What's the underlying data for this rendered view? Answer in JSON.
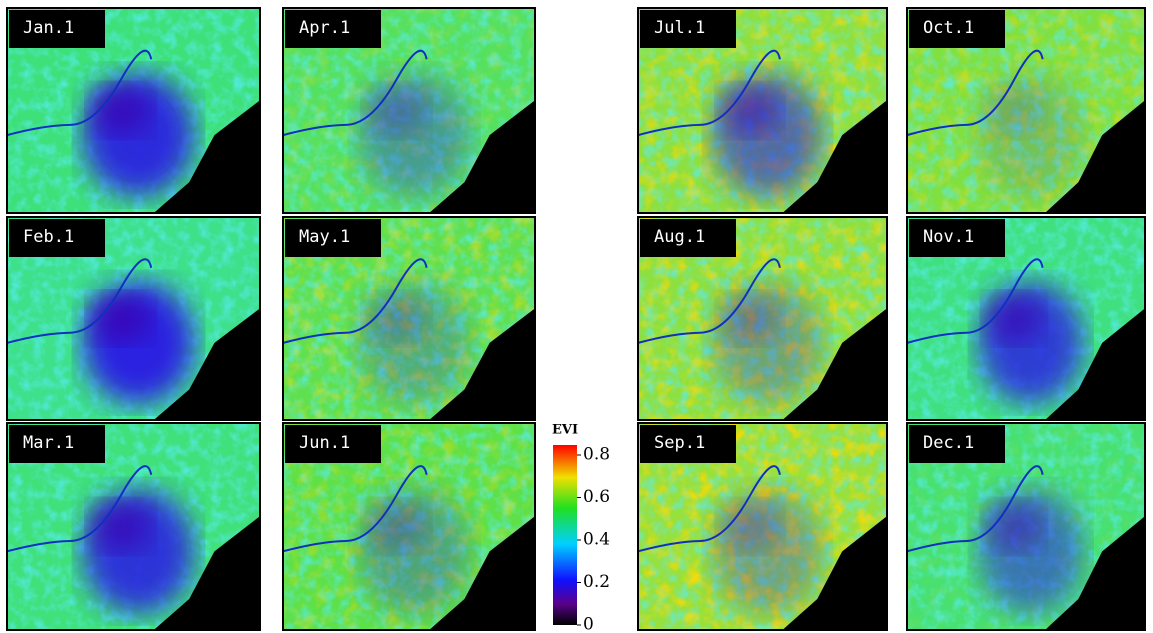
{
  "panels": [
    {
      "label": "Jan.1"
    },
    {
      "label": "Feb.1"
    },
    {
      "label": "Mar.1"
    },
    {
      "label": "Apr.1"
    },
    {
      "label": "May.1"
    },
    {
      "label": "Jun.1"
    },
    {
      "label": "Jul.1"
    },
    {
      "label": "Aug.1"
    },
    {
      "label": "Sep.1"
    },
    {
      "label": "Oct.1"
    },
    {
      "label": "Nov.1"
    },
    {
      "label": "Dec.1"
    }
  ],
  "colorbar": {
    "title": "EVI",
    "ticks": [
      0,
      0.2,
      0.4,
      0.6,
      0.8
    ]
  }
}
